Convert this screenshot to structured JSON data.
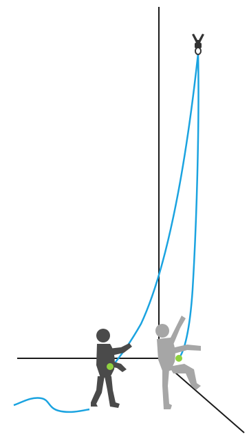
{
  "scene": {
    "description_items": [
      "room-corner",
      "rope-anchor",
      "climbing-rope",
      "belayer",
      "climber"
    ]
  },
  "colors": {
    "background": "#ffffff",
    "wall_lines": "#1a1a1a",
    "rope": "#1aa3e0",
    "belayer": "#4a4a4a",
    "climber": "#a6a6a6",
    "harness_dot": "#8fd13f",
    "anchor": "#333333"
  }
}
